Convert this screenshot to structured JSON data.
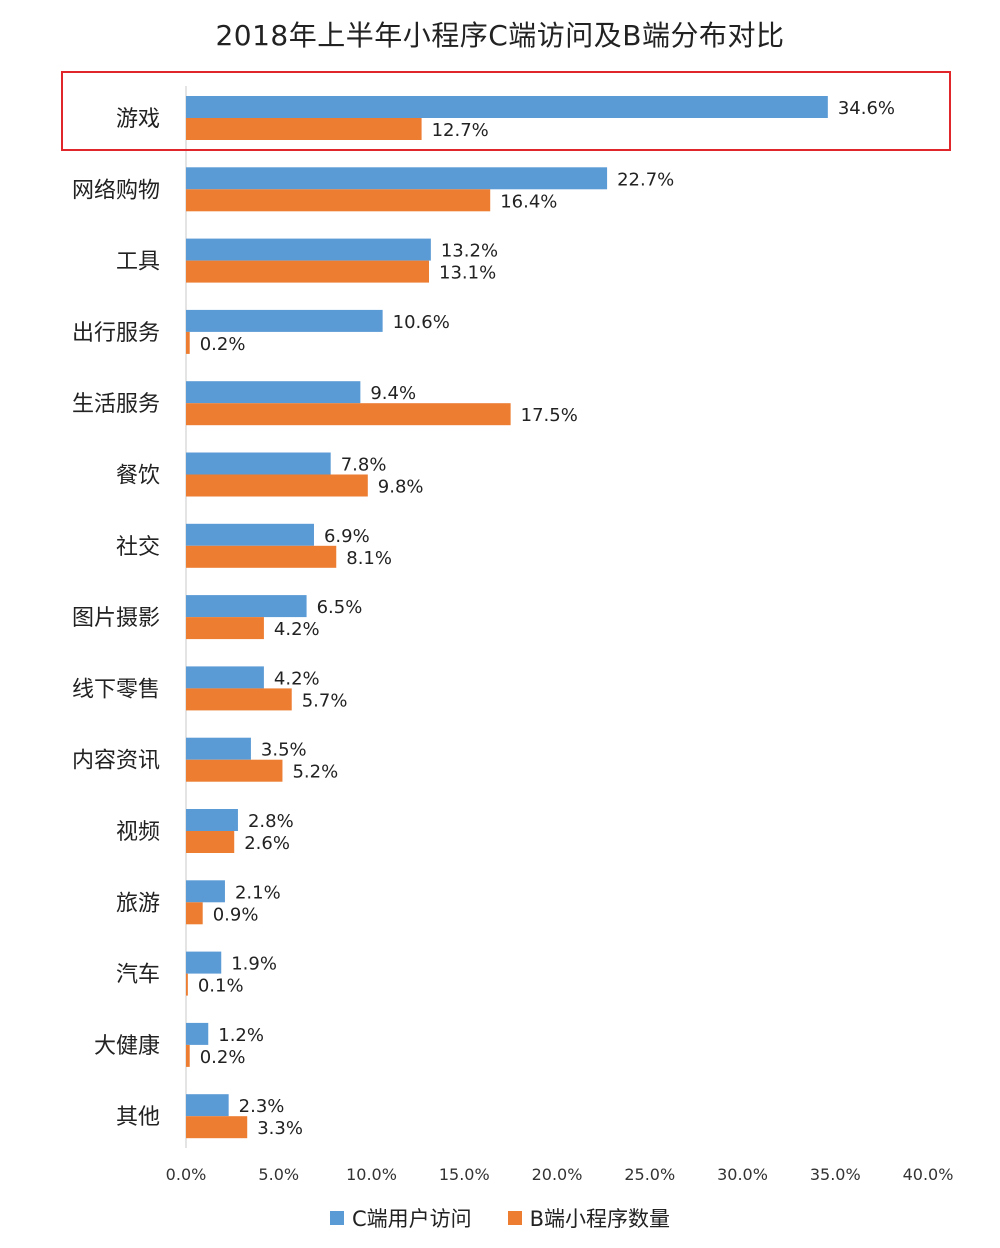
{
  "chart_data": {
    "type": "bar",
    "orientation": "horizontal",
    "title": "2018年上半年小程序C端访问及B端分布对比",
    "categories": [
      "游戏",
      "网络购物",
      "工具",
      "出行服务",
      "生活服务",
      "餐饮",
      "社交",
      "图片摄影",
      "线下零售",
      "内容资讯",
      "视频",
      "旅游",
      "汽车",
      "大健康",
      "其他"
    ],
    "series": [
      {
        "name": "C端用户访问",
        "color": "#5B9BD5",
        "values": [
          34.6,
          22.7,
          13.2,
          10.6,
          9.4,
          7.8,
          6.9,
          6.5,
          4.2,
          3.5,
          2.8,
          2.1,
          1.9,
          1.2,
          2.3
        ],
        "labels": [
          "34.6%",
          "22.7%",
          "13.2%",
          "10.6%",
          "9.4%",
          "7.8%",
          "6.9%",
          "6.5%",
          "4.2%",
          "3.5%",
          "2.8%",
          "2.1%",
          "1.9%",
          "1.2%",
          "2.3%"
        ]
      },
      {
        "name": "B端小程序数量",
        "color": "#ED7D31",
        "values": [
          12.7,
          16.4,
          13.1,
          0.2,
          17.5,
          9.8,
          8.1,
          4.2,
          5.7,
          5.2,
          2.6,
          0.9,
          0.1,
          0.2,
          3.3
        ],
        "labels": [
          "12.7%",
          "16.4%",
          "13.1%",
          "0.2%",
          "17.5%",
          "9.8%",
          "8.1%",
          "4.2%",
          "5.7%",
          "5.2%",
          "2.6%",
          "0.9%",
          "0.1%",
          "0.2%",
          "3.3%"
        ]
      }
    ],
    "xlim": [
      0,
      40
    ],
    "x_ticks": [
      "0.0%",
      "5.0%",
      "10.0%",
      "15.0%",
      "20.0%",
      "25.0%",
      "30.0%",
      "35.0%",
      "40.0%"
    ],
    "grid": false,
    "legend_position": "bottom",
    "highlighted_category": "游戏",
    "highlight_color": "#E0252B"
  }
}
